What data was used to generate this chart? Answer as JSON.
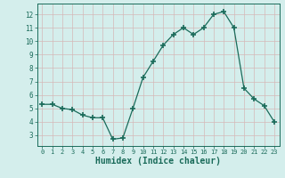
{
  "x": [
    0,
    1,
    2,
    3,
    4,
    5,
    6,
    7,
    8,
    9,
    10,
    11,
    12,
    13,
    14,
    15,
    16,
    17,
    18,
    19,
    20,
    21,
    22,
    23
  ],
  "y": [
    5.3,
    5.3,
    5.0,
    4.9,
    4.5,
    4.3,
    4.3,
    2.7,
    2.8,
    5.0,
    7.3,
    8.5,
    9.7,
    10.5,
    11.0,
    10.5,
    11.0,
    12.0,
    12.2,
    11.0,
    6.5,
    5.7,
    5.2,
    4.0
  ],
  "line_color": "#1a6b5a",
  "marker": "+",
  "marker_size": 4,
  "marker_lw": 1.2,
  "bg_color": "#d4eeec",
  "grid_color": "#c0dbd9",
  "tick_color": "#1a6b5a",
  "spine_color": "#1a6b5a",
  "xlabel": "Humidex (Indice chaleur)",
  "xlabel_fontsize": 7,
  "xlabel_color": "#1a6b5a",
  "xlim": [
    -0.5,
    23.5
  ],
  "ylim": [
    2.2,
    12.8
  ],
  "yticks": [
    3,
    4,
    5,
    6,
    7,
    8,
    9,
    10,
    11,
    12
  ],
  "xticks": [
    0,
    1,
    2,
    3,
    4,
    5,
    6,
    7,
    8,
    9,
    10,
    11,
    12,
    13,
    14,
    15,
    16,
    17,
    18,
    19,
    20,
    21,
    22,
    23
  ],
  "tick_fontsize": 5,
  "linewidth": 0.9
}
